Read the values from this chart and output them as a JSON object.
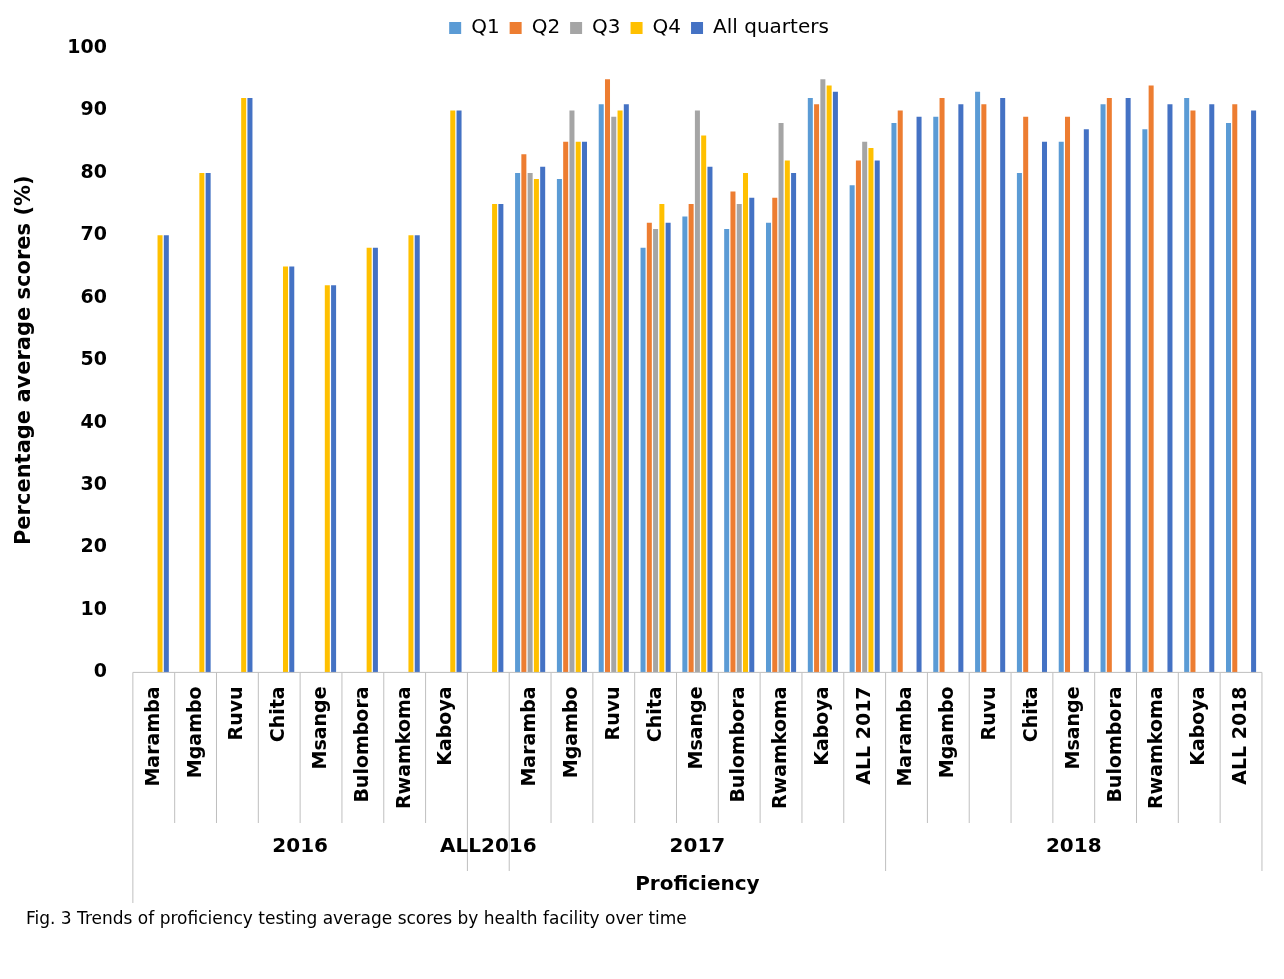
{
  "chart_data": {
    "type": "bar",
    "xlabel": "Proficiency",
    "ylabel": "Percentage average scores (%)",
    "categories": [
      "Maramba",
      "Mgambo",
      "Ruvu",
      "Chita",
      "Msange",
      "Bulombora",
      "Rwamkoma",
      "Kaboya",
      null,
      "Maramba",
      "Mgambo",
      "Ruvu",
      "Chita",
      "Msange",
      "Bulombora",
      "Rwamkoma",
      "Kaboya",
      "ALL 2017",
      "Maramba",
      "Mgambo",
      "Ruvu",
      "Chita",
      "Msange",
      "Bulombora",
      "Rwamkoma",
      "Kaboya",
      "ALL 2018"
    ],
    "series": [
      {
        "name": "Q1",
        "color": "#5b9bd5",
        "values": [
          null,
          null,
          null,
          null,
          null,
          null,
          null,
          null,
          null,
          80,
          79,
          91,
          68,
          73,
          71,
          72,
          92,
          78,
          88,
          89,
          93,
          80,
          85,
          91,
          87,
          92,
          88
        ]
      },
      {
        "name": "Q2",
        "color": "#ed7d31",
        "values": [
          null,
          null,
          null,
          null,
          null,
          null,
          null,
          null,
          null,
          83,
          85,
          95,
          72,
          75,
          77,
          76,
          91,
          82,
          90,
          92,
          91,
          89,
          89,
          92,
          94,
          90,
          91
        ]
      },
      {
        "name": "Q3",
        "color": "#a5a5a5",
        "values": [
          null,
          null,
          null,
          null,
          null,
          null,
          null,
          null,
          null,
          80,
          90,
          89,
          71,
          90,
          75,
          88,
          95,
          85,
          null,
          null,
          null,
          null,
          null,
          null,
          null,
          null,
          null
        ]
      },
      {
        "name": "Q4",
        "color": "#ffc000",
        "values": [
          70,
          80,
          92,
          65,
          62,
          68,
          70,
          90,
          75,
          79,
          85,
          90,
          75,
          86,
          80,
          82,
          94,
          84,
          null,
          null,
          null,
          null,
          null,
          null,
          null,
          null,
          null
        ]
      },
      {
        "name": "All quarters",
        "color": "#4472c4",
        "values": [
          70,
          80,
          92,
          65,
          62,
          68,
          70,
          90,
          75,
          81,
          85,
          91,
          72,
          81,
          76,
          80,
          93,
          82,
          89,
          91,
          92,
          85,
          87,
          92,
          91,
          91,
          90
        ]
      }
    ],
    "ylim": [
      0,
      100
    ],
    "yticks": [
      0,
      10,
      20,
      30,
      40,
      50,
      60,
      70,
      80,
      90,
      100
    ],
    "grid": false,
    "legend": "top",
    "annotations": [
      "2016",
      "ALL2016",
      "2017",
      "2018",
      "Fig. 3 Trends of proficiency testing average scores by health facility over time"
    ]
  }
}
